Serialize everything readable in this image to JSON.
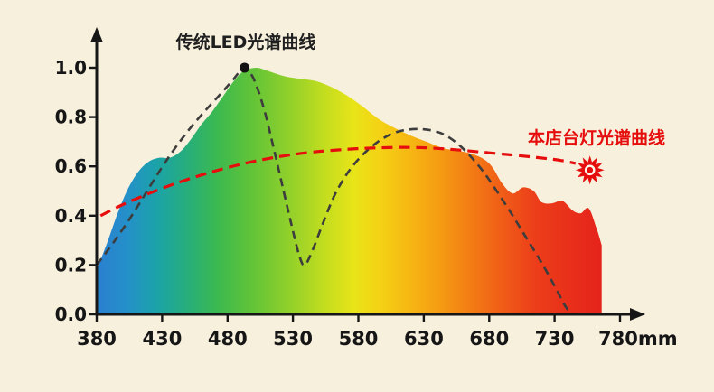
{
  "labels": {
    "traditional_curve": "传统LED光谱曲线",
    "lamp_curve": "本店台灯光谱曲线"
  },
  "colors": {
    "background": "#f7f0dd",
    "axis": "#161616",
    "tick_text": "#161616",
    "traditional_curve": "#3d3d3d",
    "traditional_label": "#1f1f1f",
    "lamp_curve": "#e60d0d",
    "sun": "#e60d0d"
  },
  "chart_data": {
    "type": "area",
    "title": "",
    "xlabel": "",
    "ylabel": "",
    "xlim": [
      380,
      780
    ],
    "ylim": [
      0,
      1.0
    ],
    "grid": false,
    "x_ticks": [
      380,
      430,
      480,
      530,
      580,
      630,
      680,
      730,
      780
    ],
    "x_tick_labels": [
      "380",
      "430",
      "480",
      "530",
      "580",
      "630",
      "680",
      "730",
      "780mm"
    ],
    "y_ticks": [
      0,
      0.2,
      0.4,
      0.6,
      0.8,
      1.0
    ],
    "y_tick_labels": [
      "0.0",
      "0.2",
      "0.4",
      "0.6",
      "0.8",
      "1.0"
    ],
    "series": [
      {
        "name": "visible-spectrum-area",
        "type": "area",
        "points": [
          [
            380,
            0.18
          ],
          [
            388,
            0.29
          ],
          [
            396,
            0.41
          ],
          [
            404,
            0.51
          ],
          [
            412,
            0.58
          ],
          [
            420,
            0.62
          ],
          [
            428,
            0.635
          ],
          [
            436,
            0.635
          ],
          [
            444,
            0.66
          ],
          [
            452,
            0.71
          ],
          [
            460,
            0.77
          ],
          [
            468,
            0.82
          ],
          [
            476,
            0.88
          ],
          [
            484,
            0.94
          ],
          [
            492,
            0.985
          ],
          [
            502,
            1.0
          ],
          [
            512,
            0.985
          ],
          [
            524,
            0.965
          ],
          [
            536,
            0.955
          ],
          [
            548,
            0.945
          ],
          [
            560,
            0.92
          ],
          [
            572,
            0.885
          ],
          [
            584,
            0.84
          ],
          [
            596,
            0.79
          ],
          [
            608,
            0.755
          ],
          [
            620,
            0.725
          ],
          [
            632,
            0.7
          ],
          [
            644,
            0.675
          ],
          [
            654,
            0.665
          ],
          [
            664,
            0.655
          ],
          [
            674,
            0.635
          ],
          [
            682,
            0.6
          ],
          [
            690,
            0.53
          ],
          [
            698,
            0.49
          ],
          [
            706,
            0.515
          ],
          [
            714,
            0.5
          ],
          [
            720,
            0.455
          ],
          [
            728,
            0.45
          ],
          [
            736,
            0.46
          ],
          [
            744,
            0.42
          ],
          [
            750,
            0.41
          ],
          [
            756,
            0.43
          ],
          [
            762,
            0.35
          ],
          [
            766,
            0.28
          ]
        ]
      },
      {
        "name": "传统LED光谱曲线",
        "type": "dashed-line",
        "color": "#3d3d3d",
        "peak_marker": [
          493,
          1.0
        ],
        "points": [
          [
            380,
            0.2
          ],
          [
            394,
            0.3
          ],
          [
            408,
            0.41
          ],
          [
            422,
            0.53
          ],
          [
            436,
            0.645
          ],
          [
            450,
            0.745
          ],
          [
            462,
            0.82
          ],
          [
            474,
            0.89
          ],
          [
            484,
            0.95
          ],
          [
            490,
            0.99
          ],
          [
            493,
            1.0
          ],
          [
            500,
            0.955
          ],
          [
            508,
            0.83
          ],
          [
            515,
            0.68
          ],
          [
            522,
            0.52
          ],
          [
            529,
            0.36
          ],
          [
            535,
            0.235
          ],
          [
            539,
            0.2
          ],
          [
            545,
            0.26
          ],
          [
            553,
            0.37
          ],
          [
            562,
            0.485
          ],
          [
            572,
            0.575
          ],
          [
            583,
            0.645
          ],
          [
            595,
            0.7
          ],
          [
            607,
            0.735
          ],
          [
            619,
            0.75
          ],
          [
            631,
            0.75
          ],
          [
            643,
            0.735
          ],
          [
            654,
            0.7
          ],
          [
            665,
            0.645
          ],
          [
            676,
            0.575
          ],
          [
            687,
            0.49
          ],
          [
            698,
            0.4
          ],
          [
            709,
            0.305
          ],
          [
            720,
            0.21
          ],
          [
            730,
            0.115
          ],
          [
            738,
            0.035
          ],
          [
            743,
            0.0
          ]
        ]
      },
      {
        "name": "本店台灯光谱曲线",
        "type": "dashed-line",
        "color": "#e60d0d",
        "sun_marker": [
          757,
          0.585
        ],
        "points": [
          [
            383,
            0.4
          ],
          [
            400,
            0.445
          ],
          [
            420,
            0.49
          ],
          [
            440,
            0.53
          ],
          [
            460,
            0.565
          ],
          [
            480,
            0.595
          ],
          [
            500,
            0.62
          ],
          [
            520,
            0.64
          ],
          [
            540,
            0.655
          ],
          [
            560,
            0.665
          ],
          [
            580,
            0.672
          ],
          [
            600,
            0.676
          ],
          [
            620,
            0.677
          ],
          [
            640,
            0.673
          ],
          [
            660,
            0.665
          ],
          [
            680,
            0.655
          ],
          [
            700,
            0.645
          ],
          [
            718,
            0.635
          ],
          [
            734,
            0.625
          ],
          [
            746,
            0.612
          ]
        ]
      }
    ],
    "spectrum_gradient": [
      [
        0.0,
        "#2b7fd0"
      ],
      [
        0.06,
        "#2490c9"
      ],
      [
        0.12,
        "#1ba3a8"
      ],
      [
        0.18,
        "#27ae7a"
      ],
      [
        0.24,
        "#3cb94f"
      ],
      [
        0.31,
        "#63c437"
      ],
      [
        0.38,
        "#90d02b"
      ],
      [
        0.45,
        "#c2dd1f"
      ],
      [
        0.51,
        "#e9e418"
      ],
      [
        0.56,
        "#f4d215"
      ],
      [
        0.62,
        "#f6b713"
      ],
      [
        0.68,
        "#f59b13"
      ],
      [
        0.74,
        "#f37d14"
      ],
      [
        0.8,
        "#f05e17"
      ],
      [
        0.87,
        "#ec3d1a"
      ],
      [
        1.0,
        "#e5231b"
      ]
    ]
  }
}
